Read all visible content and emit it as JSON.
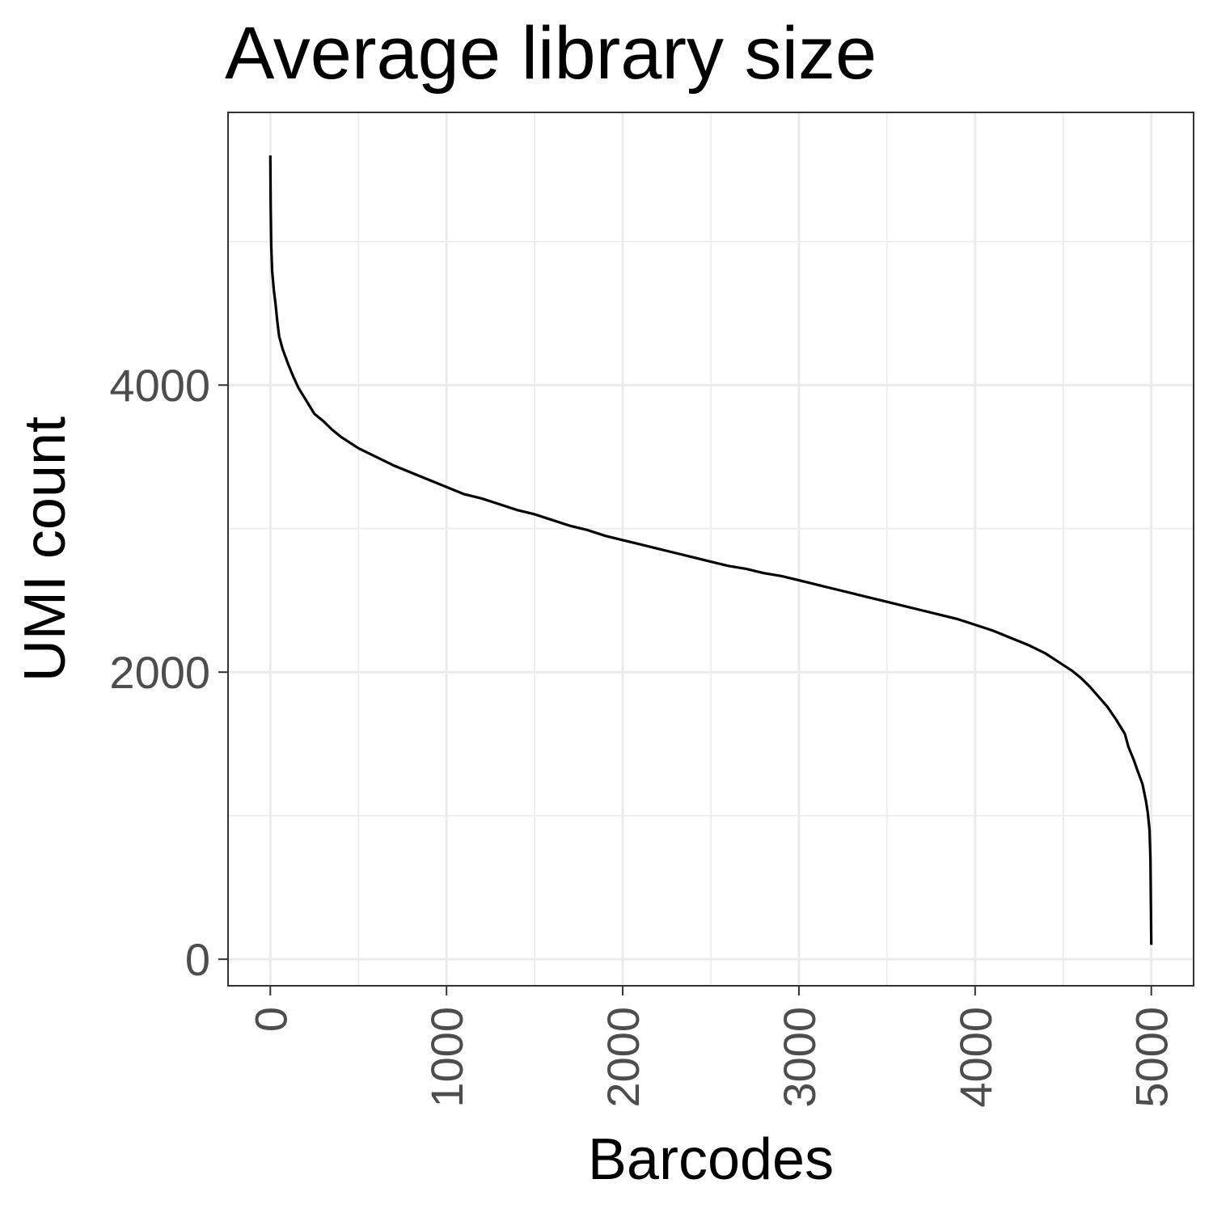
{
  "chart_data": {
    "type": "line",
    "title": "Average library size",
    "xlabel": "Barcodes",
    "ylabel": "UMI count",
    "xlim": [
      -240,
      5240
    ],
    "ylim": [
      -185,
      5900
    ],
    "x_ticks": [
      0,
      1000,
      2000,
      3000,
      4000,
      5000
    ],
    "x_minor_ticks": [
      500,
      1500,
      2500,
      3500,
      4500
    ],
    "y_ticks": [
      0,
      2000,
      4000
    ],
    "y_minor_ticks": [
      1000,
      3000,
      5000
    ],
    "grid": true,
    "legend": "none",
    "line_color": "#000000",
    "series": [
      {
        "x": [
          0,
          2,
          5,
          10,
          20,
          30,
          40,
          50,
          70,
          100,
          130,
          160,
          200,
          250,
          300,
          350,
          400,
          450,
          500,
          600,
          700,
          800,
          900,
          1000,
          1100,
          1200,
          1300,
          1400,
          1500,
          1600,
          1700,
          1800,
          1900,
          2000,
          2100,
          2200,
          2300,
          2400,
          2500,
          2600,
          2700,
          2800,
          2900,
          3000,
          3100,
          3200,
          3300,
          3400,
          3500,
          3600,
          3700,
          3800,
          3900,
          4000,
          4100,
          4200,
          4300,
          4400,
          4500,
          4550,
          4600,
          4650,
          4700,
          4750,
          4800,
          4850,
          4870,
          4900,
          4920,
          4950,
          4970,
          4980,
          4990,
          4995,
          5000
        ],
        "values": [
          5600,
          5250,
          4980,
          4800,
          4660,
          4560,
          4440,
          4340,
          4250,
          4150,
          4060,
          3980,
          3900,
          3800,
          3750,
          3690,
          3640,
          3600,
          3560,
          3500,
          3440,
          3390,
          3340,
          3290,
          3240,
          3210,
          3170,
          3130,
          3100,
          3060,
          3020,
          2990,
          2950,
          2920,
          2890,
          2860,
          2830,
          2800,
          2770,
          2740,
          2720,
          2690,
          2670,
          2640,
          2610,
          2580,
          2550,
          2520,
          2490,
          2460,
          2430,
          2400,
          2370,
          2330,
          2290,
          2240,
          2190,
          2130,
          2050,
          2010,
          1960,
          1900,
          1830,
          1760,
          1670,
          1570,
          1480,
          1390,
          1320,
          1220,
          1100,
          1020,
          900,
          700,
          100
        ]
      }
    ]
  }
}
